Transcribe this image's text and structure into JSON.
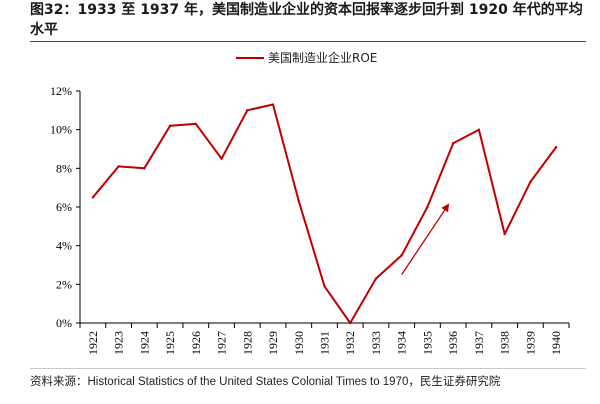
{
  "title": "图32：1933 至 1937 年，美国制造业企业的资本回报率逐步回升到 1920 年代的平均水平",
  "source": "资料来源：Historical Statistics of the United States Colonial Times to 1970，民生证券研究院",
  "colors": {
    "series": "#c00000",
    "arrow": "#c00000",
    "axis": "#000000",
    "title_rule": "#9a1c1c"
  },
  "chart_data": {
    "type": "line",
    "title": "",
    "xlabel": "",
    "ylabel": "",
    "x": [
      "1922",
      "1923",
      "1924",
      "1925",
      "1926",
      "1927",
      "1928",
      "1929",
      "1930",
      "1931",
      "1932",
      "1933",
      "1934",
      "1935",
      "1936",
      "1937",
      "1938",
      "1939",
      "1940"
    ],
    "y_ticks": [
      "0%",
      "2%",
      "4%",
      "6%",
      "8%",
      "10%",
      "12%"
    ],
    "ylim": [
      0,
      12
    ],
    "grid": false,
    "legend": "top-center",
    "series": [
      {
        "name": "美国制造业企业ROE",
        "values": [
          6.5,
          8.1,
          8.0,
          10.2,
          10.3,
          8.5,
          11.0,
          11.3,
          6.3,
          1.9,
          0.0,
          2.3,
          3.5,
          6.0,
          9.3,
          10.0,
          4.6,
          7.3,
          9.1
        ]
      }
    ],
    "annotations": [
      {
        "type": "arrow",
        "from": {
          "x": "1934",
          "y": 2.3
        },
        "to": {
          "x": "1935.8",
          "y": 6.1
        }
      }
    ]
  }
}
